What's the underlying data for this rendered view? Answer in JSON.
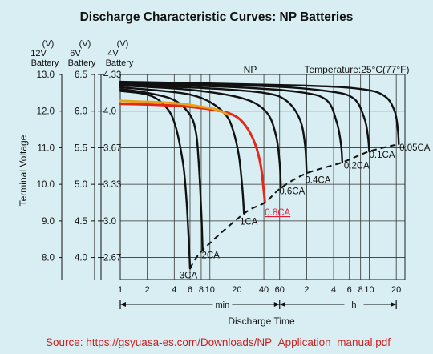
{
  "chart_data": {
    "type": "line",
    "title": "Discharge Characteristic Curves: NP Batteries",
    "series_label": "NP",
    "temperature_label": "Temperature:25°C(77°F)",
    "xlabel": "Discharge Time",
    "ylabel": "Terminal Voltage",
    "x_scale": "log",
    "x_ticks": [
      {
        "label": "1",
        "min": 1
      },
      {
        "label": "2",
        "min": 2
      },
      {
        "label": "4",
        "min": 4
      },
      {
        "label": "6",
        "min": 6
      },
      {
        "label": "8",
        "min": 8
      },
      {
        "label": "10",
        "min": 10
      },
      {
        "label": "20",
        "min": 20
      },
      {
        "label": "40",
        "min": 40
      },
      {
        "label": "60",
        "min": 60
      },
      {
        "label": "2",
        "min": 120
      },
      {
        "label": "4",
        "min": 240
      },
      {
        "label": "6",
        "min": 360
      },
      {
        "label": "8",
        "min": 480
      },
      {
        "label": "10",
        "min": 600
      },
      {
        "label": "20",
        "min": 1200
      }
    ],
    "unit_labels": {
      "min": "min",
      "h": "h"
    },
    "y_axes": [
      {
        "unit": "(V)",
        "name_line1": "12V",
        "name_line2": "Battery",
        "ticks": [
          "13.0",
          "12.0",
          "11.0",
          "10.0",
          "9.0",
          "8.0"
        ]
      },
      {
        "unit": "(V)",
        "name_line1": "6V",
        "name_line2": "Battery",
        "ticks": [
          "6.5",
          "6.0",
          "5.5",
          "5.0",
          "4.5",
          "4.0"
        ]
      },
      {
        "unit": "(V)",
        "name_line1": "4V",
        "name_line2": "Battery",
        "ticks": [
          "4.33",
          "4.0",
          "3.67",
          "3.33",
          "3.0",
          "2.67"
        ]
      }
    ],
    "ylim_12v": [
      7.4,
      13.0
    ],
    "series": [
      {
        "name": "3CA",
        "color": "#111111",
        "points": [
          [
            1,
            12.55
          ],
          [
            2,
            12.45
          ],
          [
            3,
            12.2
          ],
          [
            4,
            11.7
          ],
          [
            5,
            10.6
          ],
          [
            5.5,
            9.5
          ],
          [
            5.9,
            8.1
          ],
          [
            6,
            7.7
          ]
        ]
      },
      {
        "name": "2CA",
        "color": "#111111",
        "points": [
          [
            1,
            12.6
          ],
          [
            2,
            12.5
          ],
          [
            4,
            12.3
          ],
          [
            6,
            11.9
          ],
          [
            7,
            11.4
          ],
          [
            7.5,
            10.6
          ],
          [
            8,
            9.3
          ],
          [
            8.3,
            8.2
          ]
        ]
      },
      {
        "name": "1CA",
        "color": "#111111",
        "points": [
          [
            1,
            12.65
          ],
          [
            3,
            12.55
          ],
          [
            6,
            12.45
          ],
          [
            10,
            12.25
          ],
          [
            15,
            11.9
          ],
          [
            18,
            11.5
          ],
          [
            21,
            10.8
          ],
          [
            23,
            9.9
          ],
          [
            24,
            9.2
          ]
        ]
      },
      {
        "name": "0.8CA",
        "color": "#e32718",
        "points": [
          [
            1,
            12.2
          ],
          [
            4,
            12.15
          ],
          [
            10,
            12.05
          ],
          [
            18,
            11.9
          ],
          [
            25,
            11.6
          ],
          [
            32,
            11.1
          ],
          [
            37,
            10.5
          ],
          [
            40,
            9.8
          ],
          [
            41,
            9.5
          ]
        ]
      },
      {
        "name": "0.6CA",
        "color": "#111111",
        "points": [
          [
            1,
            12.7
          ],
          [
            5,
            12.6
          ],
          [
            15,
            12.45
          ],
          [
            30,
            12.25
          ],
          [
            45,
            11.9
          ],
          [
            55,
            11.3
          ],
          [
            60,
            10.6
          ],
          [
            62,
            9.9
          ]
        ]
      },
      {
        "name": "0.4CA",
        "color": "#111111",
        "points": [
          [
            1,
            12.72
          ],
          [
            10,
            12.62
          ],
          [
            40,
            12.5
          ],
          [
            70,
            12.3
          ],
          [
            100,
            11.8
          ],
          [
            115,
            11.1
          ],
          [
            120,
            10.3
          ]
        ]
      },
      {
        "name": "0.2CA",
        "color": "#111111",
        "points": [
          [
            1,
            12.75
          ],
          [
            20,
            12.65
          ],
          [
            100,
            12.52
          ],
          [
            200,
            12.3
          ],
          [
            260,
            11.7
          ],
          [
            290,
            11.1
          ],
          [
            300,
            10.6
          ]
        ]
      },
      {
        "name": "0.1CA",
        "color": "#111111",
        "points": [
          [
            1,
            12.78
          ],
          [
            40,
            12.68
          ],
          [
            200,
            12.55
          ],
          [
            400,
            12.35
          ],
          [
            530,
            11.8
          ],
          [
            580,
            11.3
          ],
          [
            600,
            10.9
          ]
        ]
      },
      {
        "name": "0.05CA",
        "color": "#111111",
        "points": [
          [
            1,
            12.8
          ],
          [
            100,
            12.7
          ],
          [
            500,
            12.6
          ],
          [
            900,
            12.4
          ],
          [
            1150,
            12.0
          ],
          [
            1250,
            11.5
          ],
          [
            1280,
            11.1
          ]
        ]
      },
      {
        "name": "",
        "color": "#e8a21c",
        "points": [
          [
            1,
            12.28
          ],
          [
            4,
            12.22
          ],
          [
            8,
            12.12
          ],
          [
            12,
            12.04
          ],
          [
            16,
            11.9
          ]
        ]
      }
    ],
    "cutoff_line": {
      "style": "dashed",
      "points": [
        [
          6,
          7.7
        ],
        [
          8.3,
          8.2
        ],
        [
          24,
          9.2
        ],
        [
          41,
          9.5
        ],
        [
          62,
          9.9
        ],
        [
          120,
          10.3
        ],
        [
          300,
          10.6
        ],
        [
          600,
          10.9
        ],
        [
          1280,
          11.1
        ]
      ]
    }
  },
  "source": "Source: https://gsyuasa-es.com/Downloads/NP_Application_manual.pdf"
}
